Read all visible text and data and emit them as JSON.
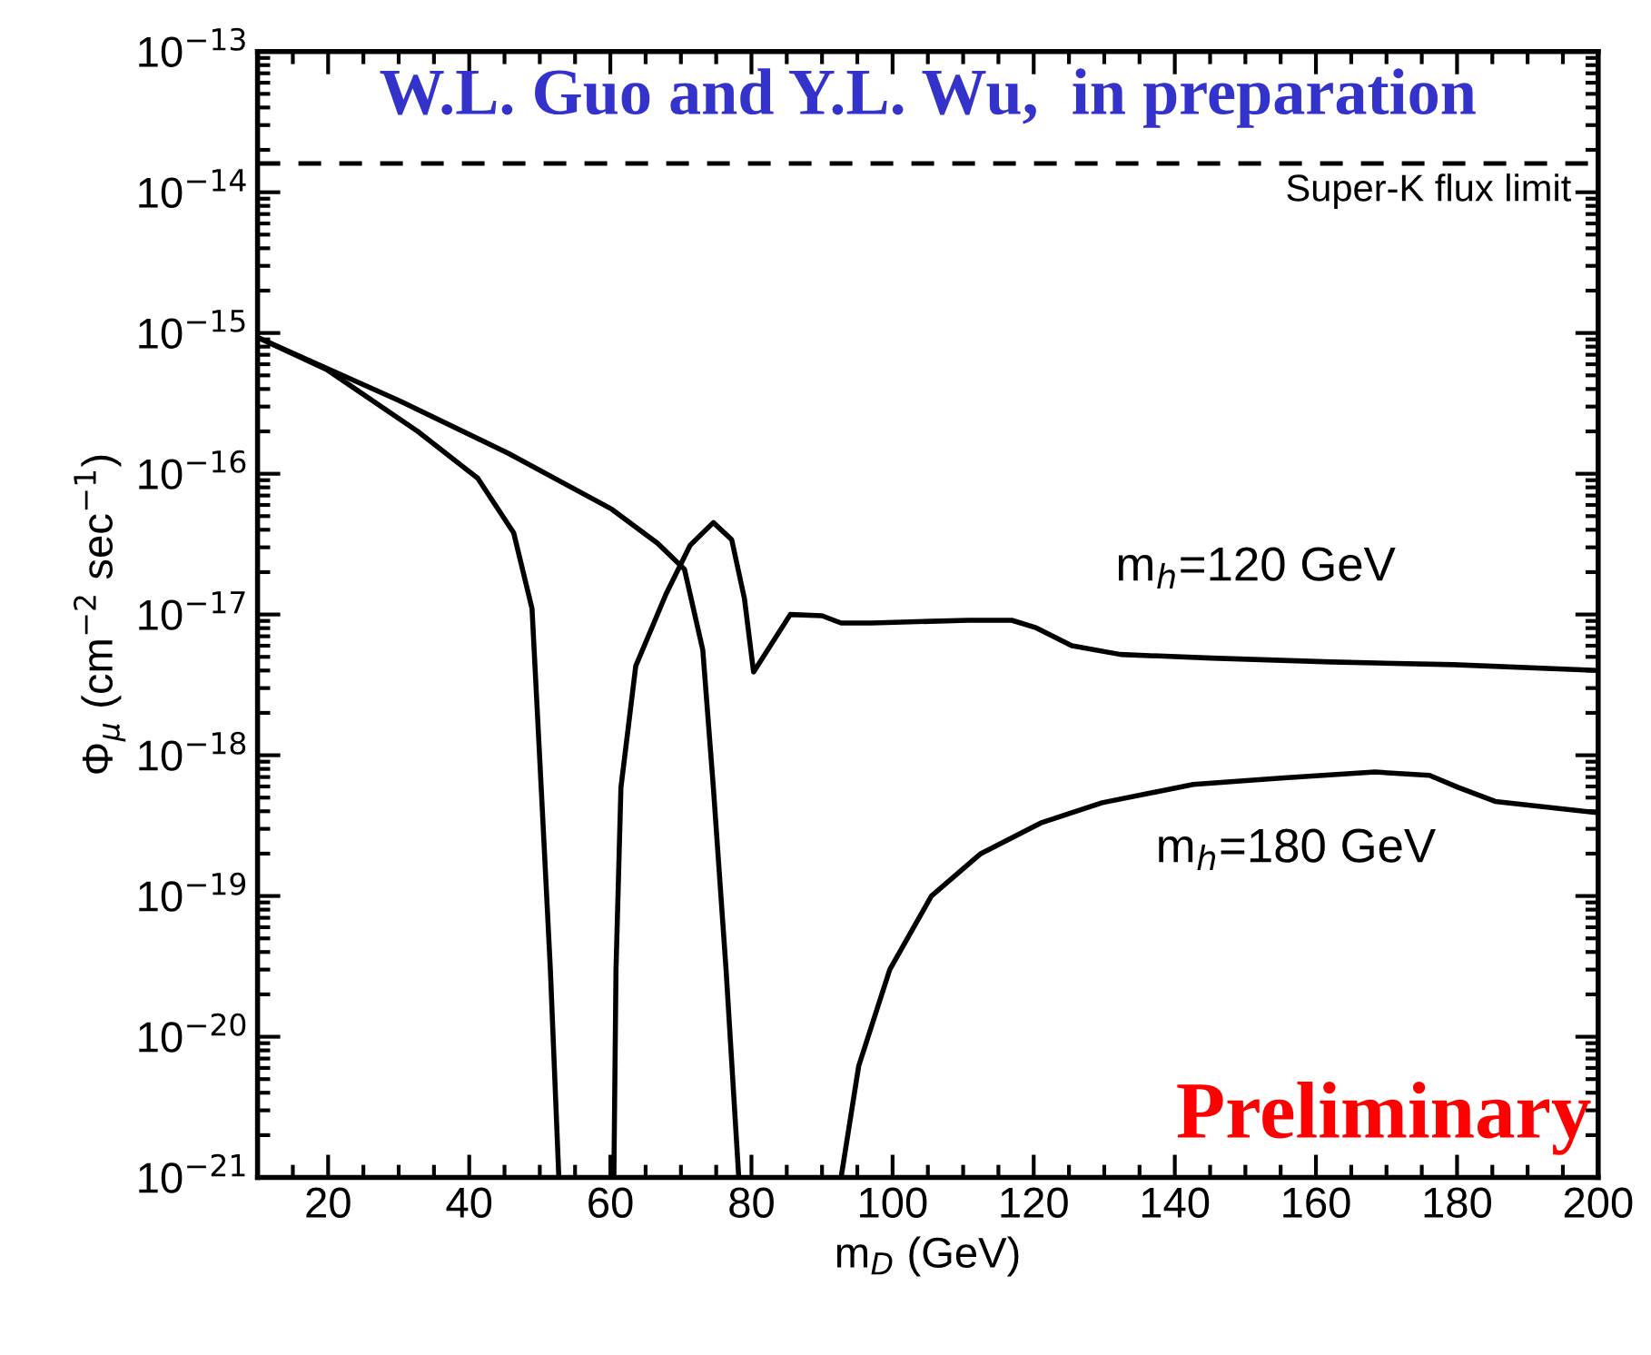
{
  "chart_data": {
    "type": "line",
    "title": "W.L. Guo and Y.L. Wu,  in preparation",
    "xlabel": "m$_{D}$ (GeV)",
    "ylabel": "Φ$_{μ}$ (cm$^{−2}$ sec$^{−1}$)",
    "annotations": [
      "Preliminary"
    ],
    "log": "y",
    "xlim": [
      10,
      200
    ],
    "xticks": [
      20,
      40,
      60,
      80,
      100,
      120,
      140,
      160,
      180,
      200
    ],
    "ylim": [
      1e-21,
      1e-13
    ],
    "yticks": [
      {
        "value": 1e-21,
        "label": "10$^{−21}$"
      },
      {
        "value": 1e-20,
        "label": "10$^{−20}$"
      },
      {
        "value": 1e-19,
        "label": "10$^{−19}$"
      },
      {
        "value": 1e-18,
        "label": "10$^{−18}$"
      },
      {
        "value": 1e-17,
        "label": "10$^{−17}$"
      },
      {
        "value": 1e-16,
        "label": "10$^{−16}$"
      },
      {
        "value": 1e-15,
        "label": "10$^{−15}$"
      },
      {
        "value": 1e-14,
        "label": "10$^{−14}$"
      },
      {
        "value": 1e-13,
        "label": "10$^{−13}$"
      }
    ],
    "grid": false,
    "legend": false,
    "marker": "none",
    "line_style": "solid",
    "ref_lines": [
      {
        "axis": "y",
        "value": 1.6e-14,
        "label": "Super-K flux limit",
        "line_style": "dashed",
        "color": "#000000"
      }
    ],
    "series": [
      {
        "name": "m$_{h}$=120 GeV",
        "color": "#000000",
        "x": [
          10,
          19.8,
          32.7,
          41.2,
          46.3,
          48.9,
          50.2,
          51.5,
          52.7,
          56,
          60.5,
          60.8,
          61.5,
          63.6,
          67.9,
          71.3,
          74.6,
          77.2,
          79,
          80.3,
          85.5,
          90,
          92.7,
          97,
          110.7,
          116.9,
          120.2,
          125.4,
          132.3,
          145.2,
          162.2,
          179.5,
          200
        ],
        "values": [
          9.3e-16,
          5.5e-16,
          2e-16,
          9.3e-17,
          3.8e-17,
          1.1e-17,
          5.9e-19,
          3e-20,
          1e-21,
          null,
          1e-21,
          3e-20,
          5.9e-19,
          4.3e-18,
          1.4e-17,
          3.1e-17,
          4.5e-17,
          3.4e-17,
          1.3e-17,
          3.9e-18,
          1e-17,
          9.8e-18,
          8.7e-18,
          8.7e-18,
          9.1e-18,
          9.1e-18,
          8.1e-18,
          6e-18,
          5.2e-18,
          4.9e-18,
          4.6e-18,
          4.4e-18,
          4e-18
        ]
      },
      {
        "name": "m$_{h}$=180 GeV",
        "color": "#000000",
        "x": [
          10,
          30.1,
          45.5,
          60.2,
          66.7,
          70.5,
          73.1,
          74.6,
          76.4,
          78.2,
          85,
          92.7,
          95.2,
          99.6,
          105.5,
          112.5,
          121,
          129.7,
          142.6,
          155.5,
          168.4,
          176.1,
          180.2,
          185.4,
          200
        ],
        "values": [
          9.3e-16,
          3.3e-16,
          1.4e-16,
          5.6e-17,
          3.2e-17,
          2.1e-17,
          5.6e-18,
          5.9e-19,
          3e-20,
          1e-21,
          null,
          1e-21,
          6.2e-21,
          3e-20,
          1e-19,
          2e-19,
          3.3e-19,
          4.6e-19,
          6.2e-19,
          6.9e-19,
          7.6e-19,
          7.2e-19,
          5.9e-19,
          4.7e-19,
          3.9e-19
        ]
      }
    ]
  }
}
